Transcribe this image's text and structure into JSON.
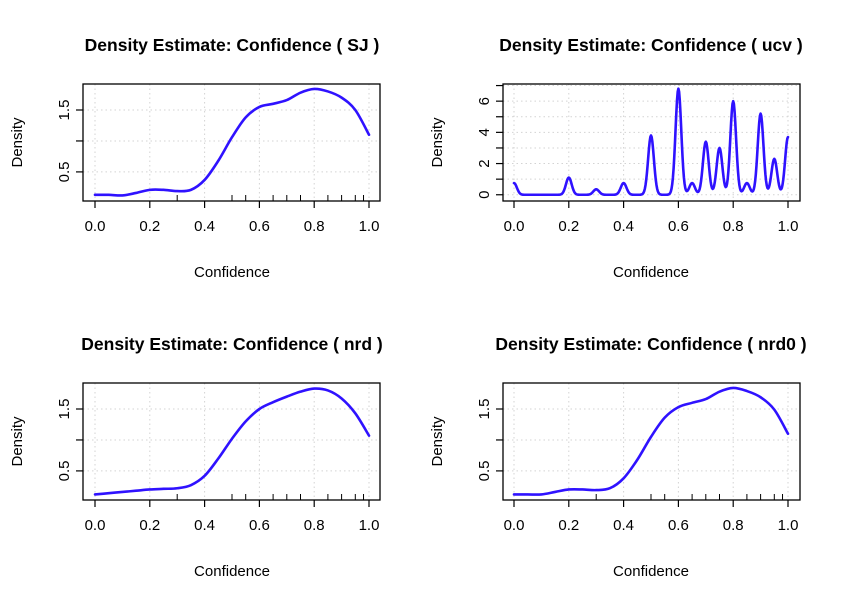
{
  "chart_data": [
    {
      "type": "line",
      "title": "Density Estimate: Confidence ( SJ )",
      "xlabel": "Confidence",
      "ylabel": "Density",
      "xlim": [
        0.0,
        1.0
      ],
      "ylim": [
        0.03,
        1.92
      ],
      "x_ticks": [
        0.0,
        0.2,
        0.4,
        0.6,
        0.8,
        1.0
      ],
      "x_tick_labels": [
        "0.0",
        "0.2",
        "0.4",
        "0.6",
        "0.8",
        "1.0"
      ],
      "y_ticks": [
        0.5,
        1.0,
        1.5
      ],
      "y_tick_labels": [
        "0.5",
        "",
        "1.5"
      ],
      "grid": true,
      "rug": [
        0.3,
        0.5,
        0.55,
        0.65,
        0.7,
        0.75,
        0.85,
        0.9,
        0.95,
        0.98
      ],
      "color": "#2f12ff",
      "x": [
        0.0,
        0.05,
        0.1,
        0.15,
        0.2,
        0.25,
        0.3,
        0.35,
        0.4,
        0.45,
        0.5,
        0.55,
        0.6,
        0.65,
        0.7,
        0.75,
        0.8,
        0.85,
        0.9,
        0.95,
        1.0
      ],
      "y": [
        0.13,
        0.13,
        0.12,
        0.16,
        0.21,
        0.21,
        0.19,
        0.21,
        0.37,
        0.68,
        1.06,
        1.38,
        1.55,
        1.6,
        1.66,
        1.78,
        1.84,
        1.8,
        1.7,
        1.5,
        1.1
      ]
    },
    {
      "type": "line",
      "title": "Density Estimate: Confidence ( ucv )",
      "xlabel": "Confidence",
      "ylabel": "Density",
      "xlim": [
        0.0,
        1.0
      ],
      "ylim": [
        -0.4,
        7.1
      ],
      "x_ticks": [
        0.0,
        0.2,
        0.4,
        0.6,
        0.8,
        1.0
      ],
      "x_tick_labels": [
        "0.0",
        "0.2",
        "0.4",
        "0.6",
        "0.8",
        "1.0"
      ],
      "y_ticks": [
        0,
        1,
        2,
        3,
        4,
        5,
        6,
        7
      ],
      "y_tick_labels": [
        "0",
        "",
        "2",
        "",
        "4",
        "",
        "6",
        ""
      ],
      "grid": true,
      "rug": [],
      "color": "#2f12ff",
      "peaks": [
        {
          "x": 0.0,
          "height": 0.75
        },
        {
          "x": 0.2,
          "height": 1.1
        },
        {
          "x": 0.3,
          "height": 0.35
        },
        {
          "x": 0.4,
          "height": 0.75
        },
        {
          "x": 0.5,
          "height": 3.8
        },
        {
          "x": 0.6,
          "height": 6.8
        },
        {
          "x": 0.65,
          "height": 0.75
        },
        {
          "x": 0.7,
          "height": 3.4
        },
        {
          "x": 0.75,
          "height": 3.0
        },
        {
          "x": 0.8,
          "height": 6.0
        },
        {
          "x": 0.85,
          "height": 0.75
        },
        {
          "x": 0.9,
          "height": 5.2
        },
        {
          "x": 0.95,
          "height": 2.3
        },
        {
          "x": 1.0,
          "height": 3.7
        }
      ]
    },
    {
      "type": "line",
      "title": "Density Estimate: Confidence ( nrd )",
      "xlabel": "Confidence",
      "ylabel": "Density",
      "xlim": [
        0.0,
        1.0
      ],
      "ylim": [
        0.03,
        1.92
      ],
      "x_ticks": [
        0.0,
        0.2,
        0.4,
        0.6,
        0.8,
        1.0
      ],
      "x_tick_labels": [
        "0.0",
        "0.2",
        "0.4",
        "0.6",
        "0.8",
        "1.0"
      ],
      "y_ticks": [
        0.5,
        1.0,
        1.5
      ],
      "y_tick_labels": [
        "0.5",
        "",
        "1.5"
      ],
      "grid": true,
      "rug": [
        0.3,
        0.5,
        0.55,
        0.65,
        0.7,
        0.75,
        0.85,
        0.9,
        0.95,
        0.98
      ],
      "color": "#2f12ff",
      "x": [
        0.0,
        0.05,
        0.1,
        0.15,
        0.2,
        0.25,
        0.3,
        0.35,
        0.4,
        0.45,
        0.5,
        0.55,
        0.6,
        0.65,
        0.7,
        0.75,
        0.8,
        0.85,
        0.9,
        0.95,
        1.0
      ],
      "y": [
        0.12,
        0.14,
        0.16,
        0.18,
        0.2,
        0.21,
        0.22,
        0.27,
        0.42,
        0.7,
        1.02,
        1.3,
        1.5,
        1.61,
        1.7,
        1.78,
        1.83,
        1.8,
        1.67,
        1.43,
        1.07
      ]
    },
    {
      "type": "line",
      "title": "Density Estimate: Confidence ( nrd0 )",
      "xlabel": "Confidence",
      "ylabel": "Density",
      "xlim": [
        0.0,
        1.0
      ],
      "ylim": [
        0.03,
        1.92
      ],
      "x_ticks": [
        0.0,
        0.2,
        0.4,
        0.6,
        0.8,
        1.0
      ],
      "x_tick_labels": [
        "0.0",
        "0.2",
        "0.4",
        "0.6",
        "0.8",
        "1.0"
      ],
      "y_ticks": [
        0.5,
        1.0,
        1.5
      ],
      "y_tick_labels": [
        "0.5",
        "",
        "1.5"
      ],
      "grid": true,
      "rug": [
        0.3,
        0.5,
        0.55,
        0.65,
        0.7,
        0.75,
        0.85,
        0.9,
        0.95,
        0.98
      ],
      "color": "#2f12ff",
      "x": [
        0.0,
        0.05,
        0.1,
        0.15,
        0.2,
        0.25,
        0.3,
        0.35,
        0.4,
        0.45,
        0.5,
        0.55,
        0.6,
        0.65,
        0.7,
        0.75,
        0.8,
        0.85,
        0.9,
        0.95,
        1.0
      ],
      "y": [
        0.12,
        0.12,
        0.12,
        0.16,
        0.2,
        0.2,
        0.19,
        0.22,
        0.38,
        0.68,
        1.05,
        1.36,
        1.53,
        1.6,
        1.66,
        1.78,
        1.84,
        1.79,
        1.69,
        1.49,
        1.1
      ]
    }
  ]
}
